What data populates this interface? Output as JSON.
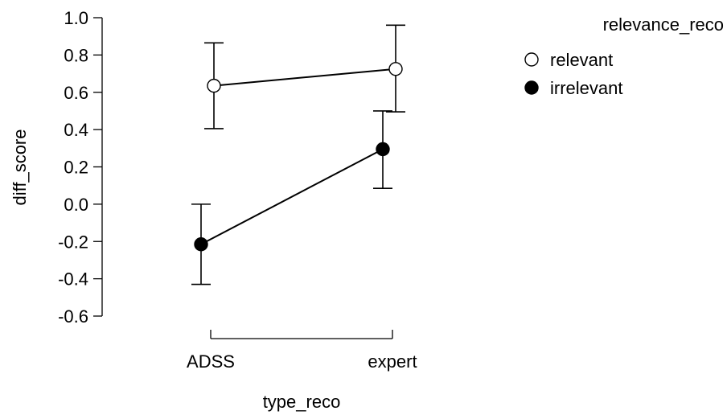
{
  "chart_data": {
    "type": "line",
    "xlabel": "type_reco",
    "ylabel": "diff_score",
    "categories": [
      "ADSS",
      "expert"
    ],
    "ylim": [
      -0.6,
      1.0
    ],
    "yticks": [
      -0.6,
      -0.4,
      -0.2,
      0.0,
      0.2,
      0.4,
      0.6,
      0.8,
      1.0
    ],
    "ytick_labels": [
      "-0.6",
      "-0.4",
      "-0.2",
      "0.0",
      "0.2",
      "0.4",
      "0.6",
      "0.8",
      "1.0"
    ],
    "grid": false,
    "legend": {
      "title": "relevance_reco",
      "placement": "top-right"
    },
    "series": [
      {
        "name": "relevant",
        "fill": "#ffffff",
        "values": [
          0.635,
          0.725
        ],
        "lower": [
          0.405,
          0.495
        ],
        "upper": [
          0.865,
          0.96
        ]
      },
      {
        "name": "irrelevant",
        "fill": "#000000",
        "values": [
          -0.215,
          0.295
        ],
        "lower": [
          -0.43,
          0.085
        ],
        "upper": [
          0.0,
          0.5
        ]
      }
    ]
  }
}
